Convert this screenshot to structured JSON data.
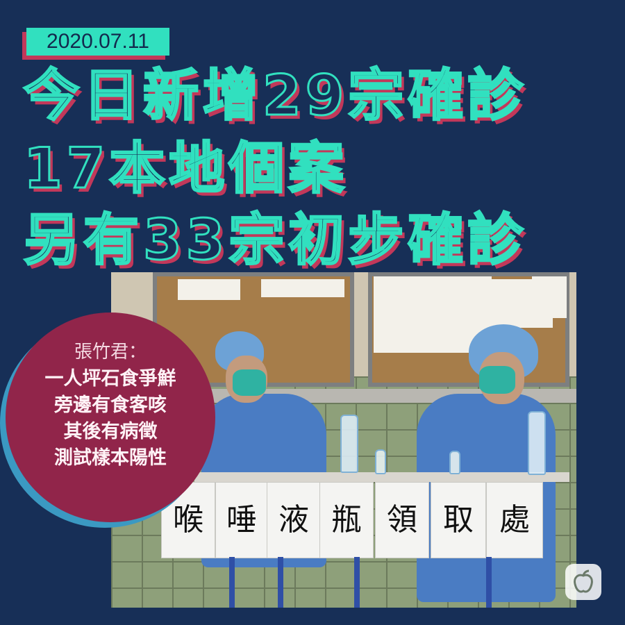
{
  "date": "2020.07.11",
  "headline": {
    "line1": "今日新增29宗確診",
    "line2": "17本地個案",
    "line3": "另有33宗初步確診"
  },
  "quote": {
    "speaker": "張竹君：",
    "lines": [
      "一人坪石食爭鮮",
      "旁邊有食客咳",
      "其後有病徵",
      "測試樣本陽性"
    ]
  },
  "photo": {
    "sign_chars": [
      "喉",
      "唾",
      "液",
      "瓶",
      "領",
      "取",
      "處"
    ]
  },
  "logo_icon": "apple-logo-icon",
  "colors": {
    "background": "#172f57",
    "accent": "#31e0bf",
    "shadow": "#c2385a",
    "circle": "#91254a"
  }
}
